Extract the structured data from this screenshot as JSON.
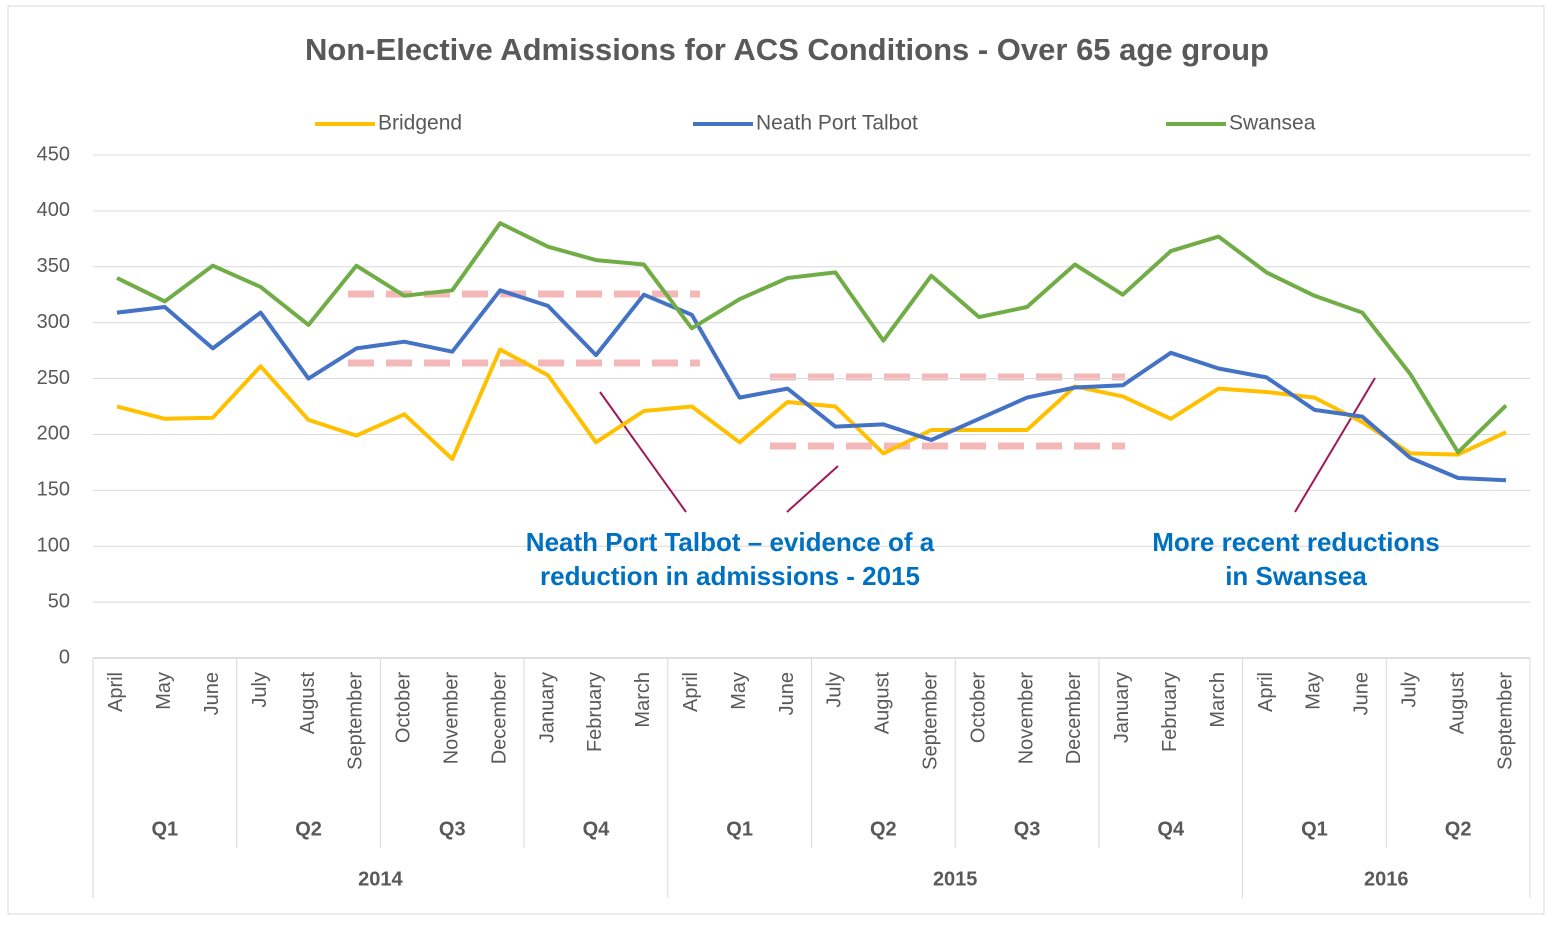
{
  "chart_data": {
    "type": "line",
    "title": "Non-Elective Admissions for ACS Conditions - Over 65 age group",
    "categories": [
      "April",
      "May",
      "June",
      "July",
      "August",
      "September",
      "October",
      "November",
      "December",
      "January",
      "February",
      "March",
      "April",
      "May",
      "June",
      "July",
      "August",
      "September",
      "October",
      "November",
      "December",
      "January",
      "February",
      "March",
      "April",
      "May",
      "June",
      "July",
      "August",
      "September"
    ],
    "quarters": [
      "Q1",
      "Q2",
      "Q3",
      "Q4",
      "Q1",
      "Q2",
      "Q3",
      "Q4",
      "Q1",
      "Q2"
    ],
    "years": [
      "2014",
      "2015",
      "2016"
    ],
    "series": [
      {
        "name": "Bridgend",
        "color": "#ffc000",
        "values": [
          225,
          214,
          215,
          261,
          213,
          199,
          218,
          178,
          276,
          253,
          193,
          221,
          225,
          193,
          229,
          225,
          183,
          204,
          204,
          204,
          243,
          234,
          214,
          241,
          238,
          233,
          211,
          183,
          182,
          202
        ]
      },
      {
        "name": "Neath Port Talbot",
        "color": "#4472c4",
        "values": [
          309,
          314,
          277,
          309,
          250,
          277,
          283,
          274,
          329,
          315,
          271,
          325,
          307,
          233,
          241,
          207,
          209,
          195,
          214,
          233,
          242,
          244,
          273,
          259,
          251,
          222,
          216,
          179,
          161,
          159
        ]
      },
      {
        "name": "Swansea",
        "color": "#70ad47",
        "values": [
          340,
          319,
          351,
          332,
          298,
          351,
          324,
          329,
          389,
          368,
          356,
          352,
          295,
          321,
          340,
          345,
          284,
          342,
          305,
          314,
          352,
          325,
          364,
          377,
          345,
          324,
          309,
          254,
          184,
          226
        ]
      }
    ],
    "ylim": [
      0,
      450
    ],
    "yticks": [
      0,
      50,
      100,
      150,
      200,
      250,
      300,
      350,
      400,
      450
    ],
    "grid": true,
    "legend": "top",
    "annotations": [
      [
        "Neath Port Talbot – evidence of a",
        "reduction in admissions - 2015"
      ],
      [
        "More recent reductions",
        "in Swansea"
      ]
    ]
  }
}
